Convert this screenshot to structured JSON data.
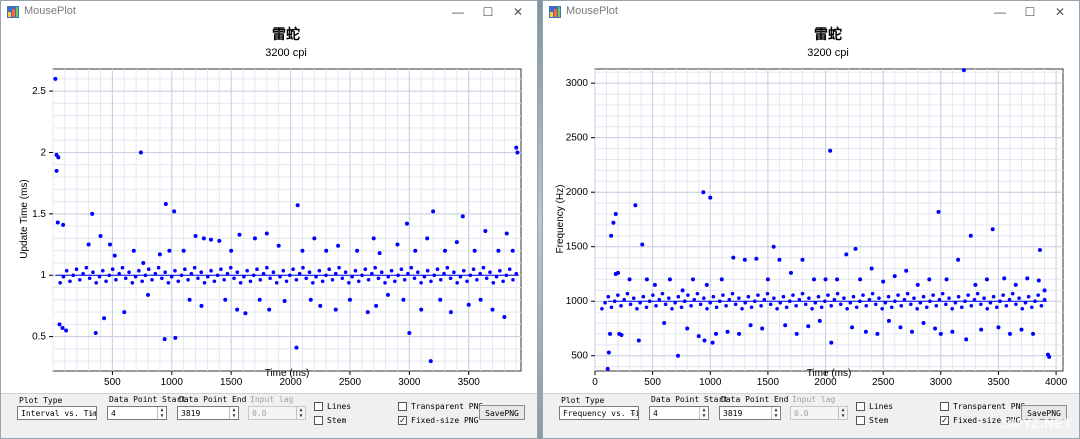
{
  "windows": [
    {
      "id": "left",
      "app_title": "MousePlot",
      "chart_data": {
        "type": "scatter",
        "title": "雷蛇",
        "subtitle": "3200 cpi",
        "xlabel": "Time (ms)",
        "ylabel": "Update Time (ms)",
        "xlim": [
          0,
          3940
        ],
        "ylim": [
          0.22,
          2.68
        ],
        "xticks": [
          500,
          1000,
          1500,
          2000,
          2500,
          3000,
          3500
        ],
        "yticks": [
          0.5,
          1,
          1.5,
          2,
          2.5
        ],
        "ytick_labels": [
          "0.5",
          "1",
          "1.5",
          "2",
          "2.5"
        ],
        "baseline": 1.0,
        "series": [
          {
            "color": "#0000ff",
            "points": [
              [
                20,
                2.6
              ],
              [
                30,
                1.98
              ],
              [
                45,
                1.96
              ],
              [
                30,
                1.85
              ],
              [
                40,
                1.43
              ],
              [
                85,
                1.41
              ],
              [
                55,
                0.6
              ],
              [
                80,
                0.57
              ],
              [
                110,
                0.55
              ],
              [
                300,
                1.25
              ],
              [
                330,
                1.5
              ],
              [
                360,
                0.53
              ],
              [
                400,
                1.32
              ],
              [
                430,
                0.65
              ],
              [
                480,
                1.25
              ],
              [
                520,
                1.16
              ],
              [
                600,
                0.7
              ],
              [
                680,
                1.2
              ],
              [
                740,
                2.0
              ],
              [
                760,
                1.1
              ],
              [
                800,
                0.84
              ],
              [
                900,
                1.17
              ],
              [
                940,
                0.48
              ],
              [
                950,
                1.58
              ],
              [
                980,
                1.2
              ],
              [
                1020,
                1.52
              ],
              [
                1030,
                0.49
              ],
              [
                1100,
                1.2
              ],
              [
                1150,
                0.8
              ],
              [
                1200,
                1.32
              ],
              [
                1250,
                0.75
              ],
              [
                1270,
                1.3
              ],
              [
                1330,
                1.29
              ],
              [
                1400,
                1.28
              ],
              [
                1450,
                0.8
              ],
              [
                1500,
                1.2
              ],
              [
                1550,
                0.72
              ],
              [
                1570,
                1.33
              ],
              [
                1620,
                0.69
              ],
              [
                1700,
                1.3
              ],
              [
                1740,
                0.8
              ],
              [
                1800,
                1.34
              ],
              [
                1820,
                0.72
              ],
              [
                1900,
                1.24
              ],
              [
                1950,
                0.79
              ],
              [
                2050,
                0.41
              ],
              [
                2060,
                1.57
              ],
              [
                2100,
                1.2
              ],
              [
                2170,
                0.8
              ],
              [
                2200,
                1.3
              ],
              [
                2250,
                0.75
              ],
              [
                2300,
                1.2
              ],
              [
                2380,
                0.72
              ],
              [
                2400,
                1.24
              ],
              [
                2500,
                0.8
              ],
              [
                2560,
                1.2
              ],
              [
                2650,
                0.7
              ],
              [
                2700,
                1.3
              ],
              [
                2720,
                0.75
              ],
              [
                2750,
                1.18
              ],
              [
                2820,
                0.84
              ],
              [
                2900,
                1.25
              ],
              [
                2950,
                0.8
              ],
              [
                2980,
                1.42
              ],
              [
                3000,
                0.53
              ],
              [
                3050,
                1.2
              ],
              [
                3100,
                0.72
              ],
              [
                3150,
                1.3
              ],
              [
                3180,
                0.3
              ],
              [
                3200,
                1.52
              ],
              [
                3260,
                0.8
              ],
              [
                3300,
                1.2
              ],
              [
                3350,
                0.7
              ],
              [
                3400,
                1.27
              ],
              [
                3450,
                1.48
              ],
              [
                3500,
                0.76
              ],
              [
                3550,
                1.2
              ],
              [
                3600,
                0.8
              ],
              [
                3640,
                1.36
              ],
              [
                3700,
                0.72
              ],
              [
                3750,
                1.2
              ],
              [
                3800,
                0.66
              ],
              [
                3820,
                1.34
              ],
              [
                3870,
                1.2
              ],
              [
                3900,
                2.04
              ],
              [
                3910,
                2.0
              ]
            ]
          }
        ]
      },
      "controls": {
        "plot_type_label": "Plot Type",
        "plot_type_value": "Interval vs. Tim",
        "start_label": "Data Point Start",
        "start_value": "4",
        "end_label": "Data Point End",
        "end_value": "3819",
        "lag_label": "Input lag",
        "lag_value": "0.0",
        "lines_label": "Lines",
        "stem_label": "Stem",
        "transparent_label": "Transparent PNG",
        "fixed_label": "Fixed-size PNG",
        "save_label": "SavePNG"
      }
    },
    {
      "id": "right",
      "app_title": "MousePlot",
      "chart_data": {
        "type": "scatter",
        "title": "雷蛇",
        "subtitle": "3200 cpi",
        "xlabel": "Time (ms)",
        "ylabel": "Frequency (Hz)",
        "xlim": [
          0,
          4060
        ],
        "ylim": [
          360,
          3130
        ],
        "xticks": [
          0,
          500,
          1000,
          1500,
          2000,
          2500,
          3000,
          3500,
          4000
        ],
        "yticks": [
          500,
          1000,
          1500,
          2000,
          2500,
          3000
        ],
        "ytick_labels": [
          "500",
          "1000",
          "1500",
          "2000",
          "2500",
          "3000"
        ],
        "baseline": 1000,
        "series": [
          {
            "color": "#0000ff",
            "points": [
              [
                110,
                380
              ],
              [
                120,
                530
              ],
              [
                130,
                700
              ],
              [
                140,
                1600
              ],
              [
                160,
                1720
              ],
              [
                180,
                1800
              ],
              [
                180,
                1250
              ],
              [
                200,
                1260
              ],
              [
                210,
                700
              ],
              [
                230,
                690
              ],
              [
                300,
                1200
              ],
              [
                350,
                1880
              ],
              [
                380,
                640
              ],
              [
                410,
                1520
              ],
              [
                450,
                1200
              ],
              [
                520,
                1150
              ],
              [
                600,
                800
              ],
              [
                650,
                1200
              ],
              [
                720,
                500
              ],
              [
                760,
                1100
              ],
              [
                800,
                750
              ],
              [
                850,
                1200
              ],
              [
                900,
                680
              ],
              [
                940,
                2000
              ],
              [
                950,
                640
              ],
              [
                970,
                1150
              ],
              [
                1000,
                1950
              ],
              [
                1020,
                620
              ],
              [
                1050,
                700
              ],
              [
                1100,
                1200
              ],
              [
                1150,
                720
              ],
              [
                1200,
                1400
              ],
              [
                1250,
                700
              ],
              [
                1300,
                1380
              ],
              [
                1350,
                780
              ],
              [
                1400,
                1390
              ],
              [
                1450,
                750
              ],
              [
                1500,
                1200
              ],
              [
                1550,
                1500
              ],
              [
                1600,
                1380
              ],
              [
                1650,
                780
              ],
              [
                1700,
                1260
              ],
              [
                1750,
                700
              ],
              [
                1800,
                1380
              ],
              [
                1850,
                770
              ],
              [
                1900,
                1200
              ],
              [
                1950,
                820
              ],
              [
                2000,
                1200
              ],
              [
                2040,
                2380
              ],
              [
                2050,
                620
              ],
              [
                2100,
                1200
              ],
              [
                2180,
                1430
              ],
              [
                2230,
                760
              ],
              [
                2260,
                1480
              ],
              [
                2300,
                1200
              ],
              [
                2350,
                720
              ],
              [
                2400,
                1300
              ],
              [
                2450,
                700
              ],
              [
                2500,
                1180
              ],
              [
                2550,
                820
              ],
              [
                2600,
                1230
              ],
              [
                2650,
                760
              ],
              [
                2700,
                1280
              ],
              [
                2750,
                720
              ],
              [
                2800,
                1150
              ],
              [
                2850,
                800
              ],
              [
                2900,
                1200
              ],
              [
                2950,
                750
              ],
              [
                2980,
                1820
              ],
              [
                3000,
                700
              ],
              [
                3050,
                1200
              ],
              [
                3100,
                720
              ],
              [
                3150,
                1380
              ],
              [
                3200,
                3120
              ],
              [
                3220,
                650
              ],
              [
                3260,
                1600
              ],
              [
                3300,
                1150
              ],
              [
                3350,
                740
              ],
              [
                3400,
                1200
              ],
              [
                3450,
                1660
              ],
              [
                3500,
                760
              ],
              [
                3550,
                1210
              ],
              [
                3600,
                700
              ],
              [
                3650,
                1150
              ],
              [
                3700,
                740
              ],
              [
                3750,
                1210
              ],
              [
                3800,
                700
              ],
              [
                3850,
                1190
              ],
              [
                3860,
                1470
              ],
              [
                3900,
                1100
              ],
              [
                3930,
                510
              ],
              [
                3940,
                490
              ]
            ]
          }
        ]
      },
      "controls": {
        "plot_type_label": "Plot Type",
        "plot_type_value": "Frequency vs. Ti",
        "start_label": "Data Point Start",
        "start_value": "4",
        "end_label": "Data Point End",
        "end_value": "3819",
        "lag_label": "Input lag",
        "lag_value": "0.0",
        "lines_label": "Lines",
        "stem_label": "Stem",
        "transparent_label": "Transparent PNG",
        "fixed_label": "Fixed-size PNG",
        "save_label": "SavePNG"
      }
    }
  ],
  "watermark": "SMYZ.NET",
  "icons": {
    "app": "app-icon",
    "minimize": "minimize-icon",
    "maximize": "maximize-icon",
    "close": "close-icon",
    "dropdown": "chevron-down-icon",
    "spinner": "spinner-arrows-icon",
    "check": "checkmark-icon"
  }
}
